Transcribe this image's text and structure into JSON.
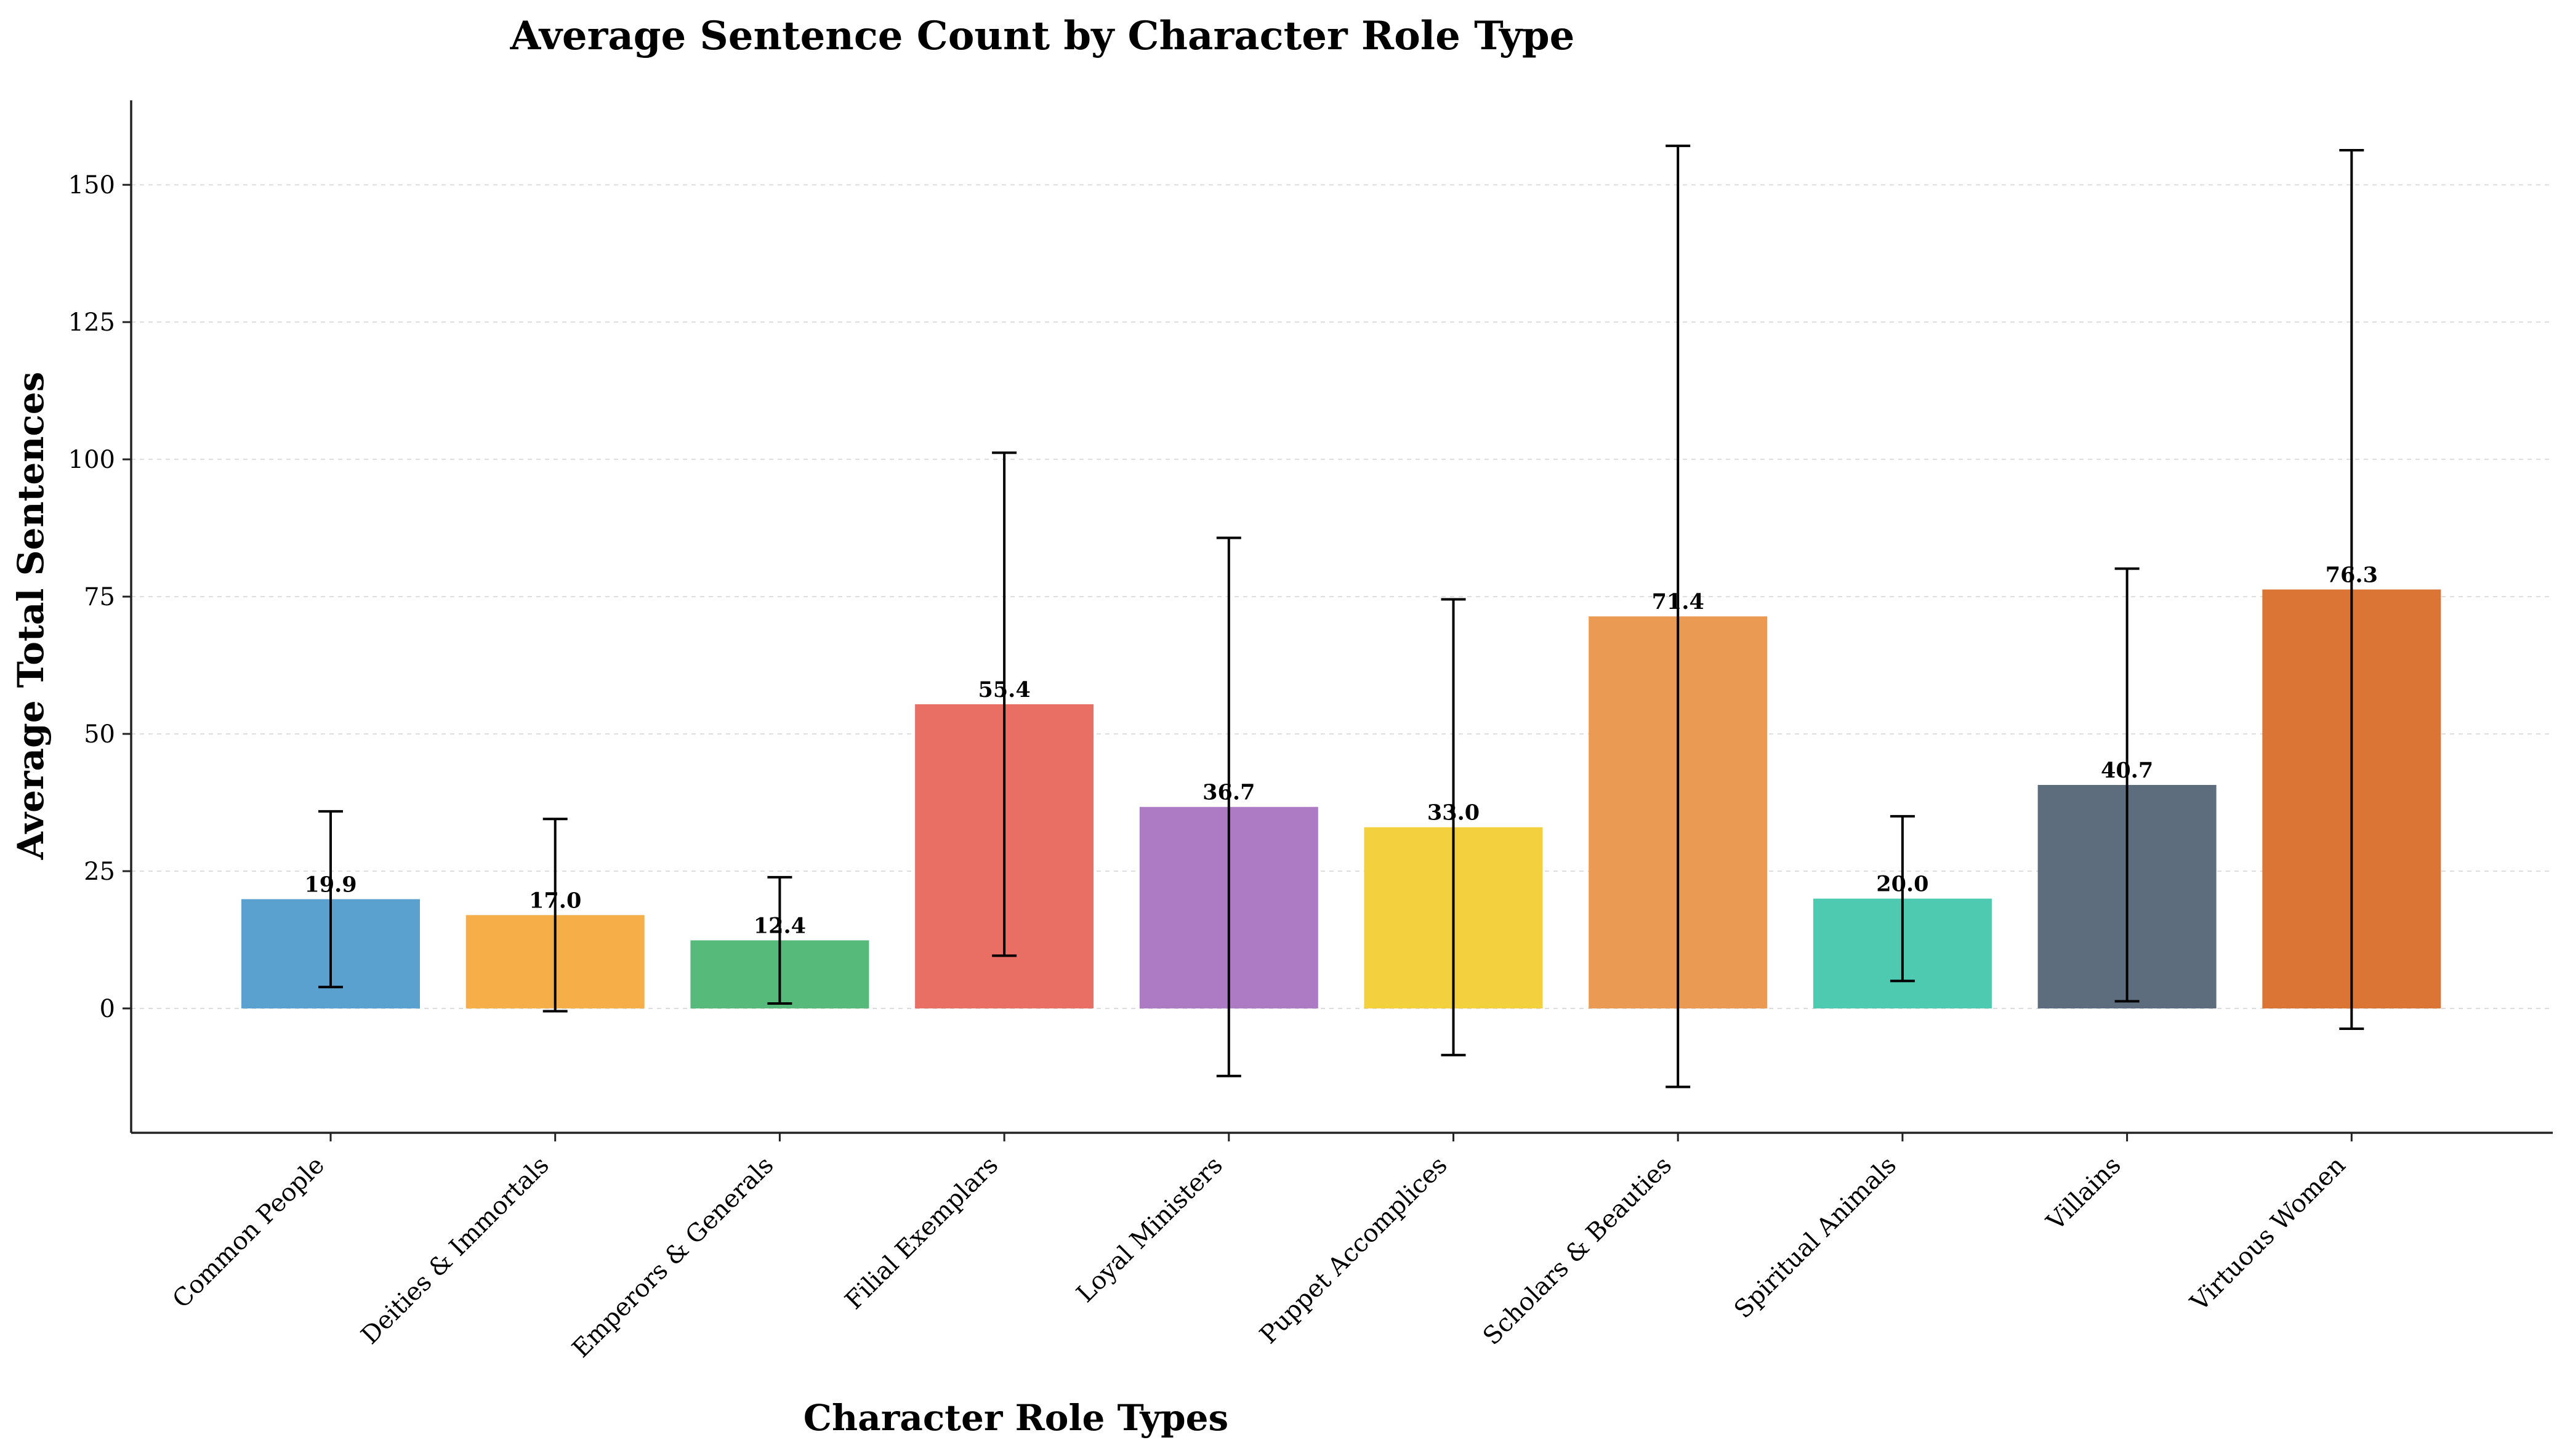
{
  "chart_data": {
    "type": "bar",
    "title": "Average Sentence Count by Character Role Type",
    "xlabel": "Character Role Types",
    "ylabel": "Average Total Sentences",
    "ylim": [
      -23,
      165
    ],
    "yticks": [
      0,
      25,
      50,
      75,
      100,
      125,
      150
    ],
    "grid": true,
    "legend": "none",
    "categories": [
      "Common People",
      "Deities & Immortals",
      "Emperors & Generals",
      "Filial Exemplars",
      "Loyal Ministers",
      "Puppet Accomplices",
      "Scholars & Beauties",
      "Spiritual Animals",
      "Villains",
      "Virtuous Women"
    ],
    "values": [
      19.9,
      17.0,
      12.4,
      55.4,
      36.7,
      33.0,
      71.4,
      20.0,
      40.7,
      76.3
    ],
    "value_labels": [
      "19.9",
      "17.0",
      "12.4",
      "55.4",
      "36.7",
      "33.0",
      "71.4",
      "20.0",
      "40.7",
      "76.3"
    ],
    "errors": [
      16.0,
      17.5,
      11.5,
      45.8,
      49.0,
      41.5,
      85.7,
      15.0,
      39.4,
      80.0
    ],
    "colors": [
      "#5ba1cf",
      "#f5ae48",
      "#56bb7a",
      "#e96e64",
      "#ad7bc4",
      "#f2d03e",
      "#ea9a52",
      "#4ecab1",
      "#5e6d7e",
      "#db7536"
    ]
  }
}
